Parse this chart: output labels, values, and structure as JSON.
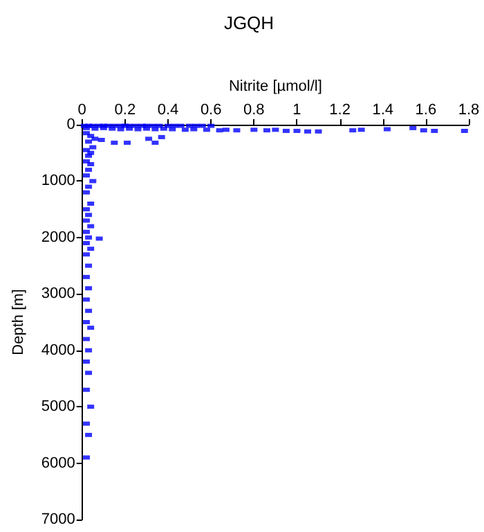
{
  "chart_data": {
    "type": "scatter",
    "title": "JGQH",
    "xlabel": "Nitrite [µmol/l]",
    "ylabel": "Depth [m]",
    "xlim": [
      0,
      1.8
    ],
    "xticks": [
      0,
      0.2,
      0.4,
      0.6,
      0.8,
      1,
      1.2,
      1.4,
      1.6,
      1.8
    ],
    "ylim": [
      7000,
      0
    ],
    "yticks": [
      0,
      1000,
      2000,
      3000,
      4000,
      5000,
      6000,
      7000
    ],
    "marker": "square",
    "grid": false,
    "series": [
      {
        "color": "#0000ff",
        "x": [
          0.01,
          0.03,
          0.05,
          0.08,
          0.1,
          0.12,
          0.15,
          0.18,
          0.2,
          0.22,
          0.25,
          0.28,
          0.3,
          0.33,
          0.36,
          0.4,
          0.43,
          0.46,
          0.5,
          0.53,
          0.56,
          0.6,
          0.02,
          0.06,
          0.1,
          0.14,
          0.18,
          0.22,
          0.26,
          0.3,
          0.34,
          0.38,
          0.42,
          0.48,
          0.52,
          0.58,
          0.64,
          0.67,
          0.72,
          0.8,
          0.86,
          0.9,
          0.95,
          1.0,
          1.05,
          1.1,
          1.26,
          1.3,
          1.42,
          1.54,
          1.59,
          1.64,
          1.78,
          0.09,
          0.15,
          0.21,
          0.31,
          0.34,
          0.37,
          0.02,
          0.04,
          0.06,
          0.03,
          0.05,
          0.02,
          0.04,
          0.03,
          0.02,
          0.04,
          0.03,
          0.02,
          0.05,
          0.03,
          0.02,
          0.04,
          0.08,
          0.02,
          0.03,
          0.02,
          0.04,
          0.02,
          0.03,
          0.02,
          0.04,
          0.02,
          0.03,
          0.02,
          0.03,
          0.02,
          0.03,
          0.02,
          0.04,
          0.02,
          0.03,
          0.02,
          0.03,
          0.02,
          0.04,
          0.02,
          0.03,
          0.02
        ],
        "values": [
          20,
          20,
          20,
          20,
          20,
          20,
          20,
          20,
          20,
          20,
          20,
          20,
          20,
          20,
          20,
          20,
          20,
          20,
          20,
          20,
          20,
          20,
          60,
          70,
          60,
          70,
          80,
          70,
          80,
          70,
          80,
          70,
          80,
          90,
          80,
          90,
          100,
          90,
          100,
          90,
          100,
          90,
          110,
          110,
          120,
          120,
          100,
          90,
          80,
          60,
          100,
          110,
          110,
          270,
          320,
          320,
          250,
          320,
          220,
          150,
          200,
          250,
          300,
          400,
          450,
          500,
          550,
          650,
          700,
          800,
          900,
          1000,
          1100,
          1200,
          1400,
          2020,
          1500,
          1600,
          1700,
          1800,
          1900,
          2000,
          2100,
          2200,
          2300,
          2500,
          2700,
          2900,
          3100,
          3300,
          3500,
          3600,
          3800,
          4000,
          4200,
          4400,
          4700,
          5000,
          5300,
          5500,
          5900
        ]
      }
    ]
  }
}
